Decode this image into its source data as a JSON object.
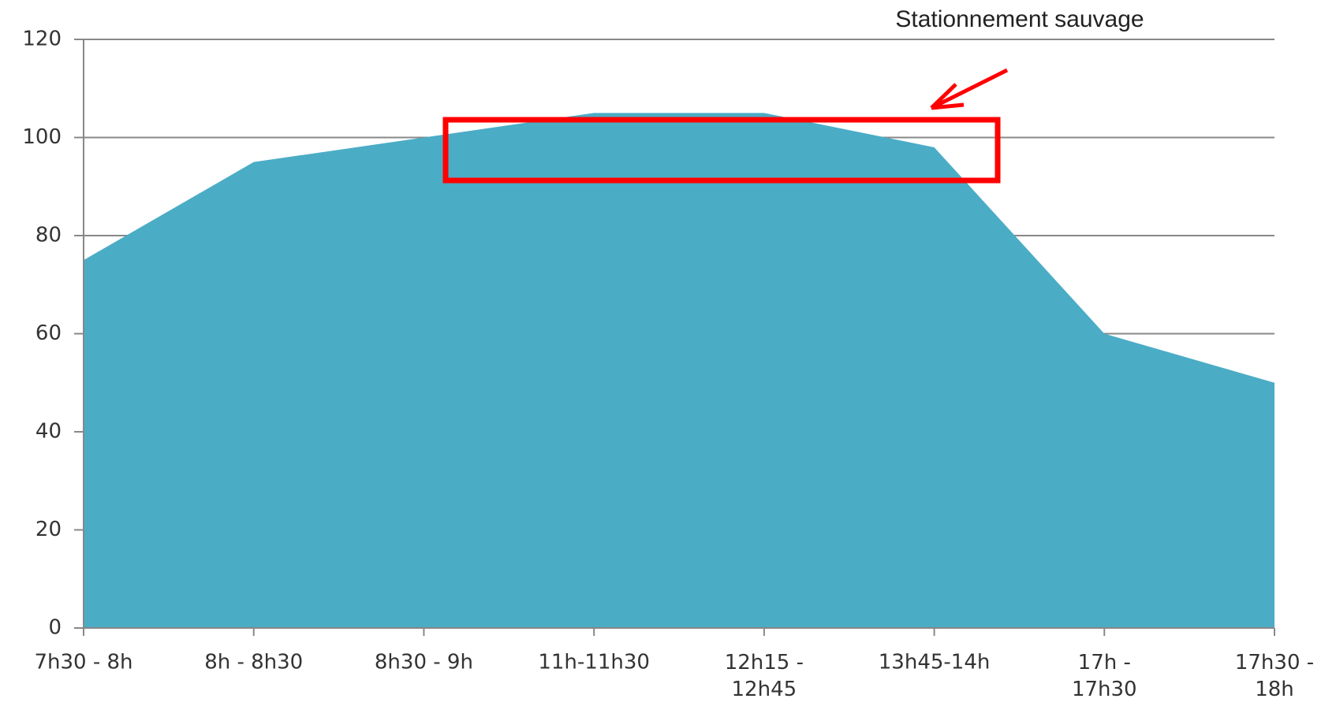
{
  "chart_data": {
    "type": "area",
    "annotation": "Stationnement sauvage",
    "categories": [
      "7h30 - 8h",
      "8h - 8h30",
      "8h30 - 9h",
      "11h-11h30",
      "12h15 -\n12h45",
      "13h45-14h",
      "17h -\n17h30",
      "17h30 -\n18h"
    ],
    "values": [
      75,
      95,
      100,
      105,
      105,
      98,
      60,
      50
    ],
    "color": "#4bacc6",
    "ylim": [
      0,
      120
    ],
    "yticks": [
      0,
      20,
      40,
      60,
      80,
      100,
      120
    ],
    "grid": true
  }
}
